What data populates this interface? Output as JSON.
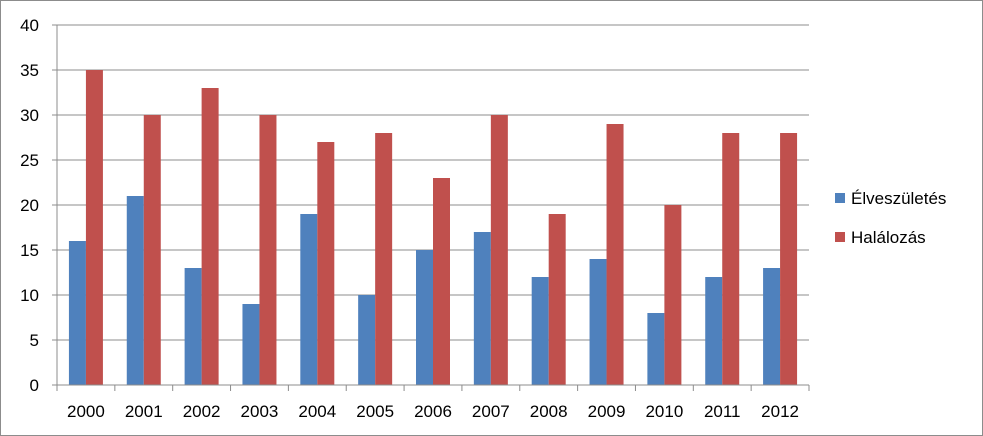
{
  "chart_data": {
    "type": "bar",
    "categories": [
      "2000",
      "2001",
      "2002",
      "2003",
      "2004",
      "2005",
      "2006",
      "2007",
      "2008",
      "2009",
      "2010",
      "2011",
      "2012"
    ],
    "series": [
      {
        "name": "Élveszületés",
        "color": "#4f81bd",
        "values": [
          16,
          21,
          13,
          9,
          19,
          10,
          15,
          17,
          12,
          14,
          8,
          12,
          13
        ]
      },
      {
        "name": "Halálozás",
        "color": "#c0504d",
        "values": [
          35,
          30,
          33,
          30,
          27,
          28,
          23,
          30,
          19,
          29,
          20,
          28,
          28
        ]
      }
    ],
    "ylim": [
      0,
      40
    ],
    "yticks": [
      0,
      5,
      10,
      15,
      20,
      25,
      30,
      35,
      40
    ],
    "grid": true,
    "legend_position": "right"
  }
}
